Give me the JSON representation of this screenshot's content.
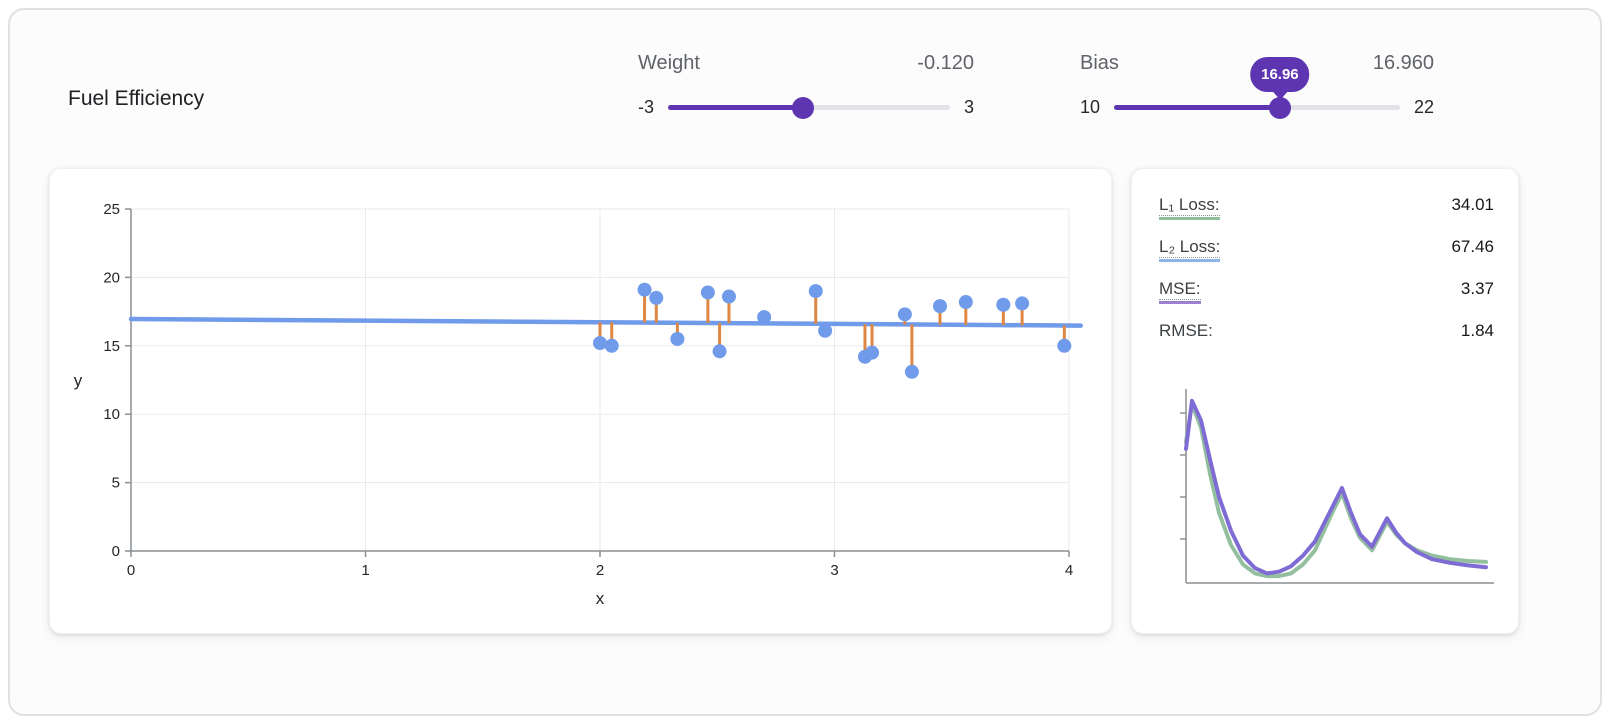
{
  "header": {
    "title": "Fuel Efficiency",
    "weight": {
      "label": "Weight",
      "value": -0.12,
      "value_display": "-0.120",
      "min": -3,
      "max": 3,
      "min_label": "-3",
      "max_label": "3"
    },
    "bias": {
      "label": "Bias",
      "value": 16.96,
      "value_display": "16.960",
      "min": 10,
      "max": 22,
      "min_label": "10",
      "max_label": "22",
      "tooltip": "16.96"
    }
  },
  "loss_panel": {
    "rows": [
      {
        "label": "L₁ Loss:",
        "value": "34.01",
        "color": "#8ebe9a"
      },
      {
        "label": "L₂ Loss:",
        "value": "67.46",
        "color": "#8fb4e8"
      },
      {
        "label": "MSE:",
        "value": "3.37",
        "color": "#9b7fd4"
      },
      {
        "label": "RMSE:",
        "value": "1.84",
        "color": "none"
      }
    ]
  },
  "colors": {
    "accent": "#5e35b1",
    "point_blue": "#6f9bea",
    "line_blue": "#6f9bea",
    "residual_orange": "#de8743",
    "curve_green": "#94bf9e",
    "curve_purple": "#7e6bd3",
    "axis_gray": "#8a8f94",
    "grid_gray": "#e9eaec"
  },
  "chart_data": [
    {
      "type": "scatter",
      "title": "",
      "xlabel": "x",
      "ylabel": "y",
      "xlim": [
        0,
        4
      ],
      "ylim": [
        0,
        25
      ],
      "xticks": [
        0,
        1,
        2,
        3,
        4
      ],
      "yticks": [
        0,
        5,
        10,
        15,
        20,
        25
      ],
      "grid": true,
      "points": [
        [
          2.0,
          15.2
        ],
        [
          2.05,
          15.0
        ],
        [
          2.19,
          19.1
        ],
        [
          2.24,
          18.5
        ],
        [
          2.33,
          15.5
        ],
        [
          2.46,
          18.9
        ],
        [
          2.51,
          14.6
        ],
        [
          2.55,
          18.6
        ],
        [
          2.7,
          17.1
        ],
        [
          2.92,
          19.0
        ],
        [
          2.96,
          16.1
        ],
        [
          3.13,
          14.2
        ],
        [
          3.16,
          14.5
        ],
        [
          3.3,
          17.3
        ],
        [
          3.33,
          13.1
        ],
        [
          3.45,
          17.9
        ],
        [
          3.56,
          18.2
        ],
        [
          3.72,
          18.0
        ],
        [
          3.8,
          18.1
        ],
        [
          3.98,
          15.0
        ]
      ],
      "model_line": {
        "weight": -0.12,
        "bias": 16.96
      },
      "residuals": true
    },
    {
      "type": "line",
      "title": "loss-curve",
      "xlim": [
        0,
        1
      ],
      "ylim": [
        0,
        1
      ],
      "grid": false,
      "legend": "none",
      "series": [
        {
          "name": "l1-loss-curve",
          "color": "#94bf9e",
          "points": [
            [
              0,
              0.76
            ],
            [
              0.02,
              0.97
            ],
            [
              0.05,
              0.84
            ],
            [
              0.08,
              0.58
            ],
            [
              0.11,
              0.36
            ],
            [
              0.15,
              0.18
            ],
            [
              0.19,
              0.07
            ],
            [
              0.23,
              0.02
            ],
            [
              0.27,
              0.005
            ],
            [
              0.31,
              0.005
            ],
            [
              0.35,
              0.02
            ],
            [
              0.39,
              0.07
            ],
            [
              0.43,
              0.15
            ],
            [
              0.46,
              0.26
            ],
            [
              0.49,
              0.37
            ],
            [
              0.52,
              0.47
            ],
            [
              0.55,
              0.33
            ],
            [
              0.58,
              0.22
            ],
            [
              0.62,
              0.15
            ],
            [
              0.645,
              0.23
            ],
            [
              0.67,
              0.31
            ],
            [
              0.7,
              0.24
            ],
            [
              0.73,
              0.19
            ],
            [
              0.77,
              0.15
            ],
            [
              0.82,
              0.12
            ],
            [
              0.88,
              0.1
            ],
            [
              0.94,
              0.09
            ],
            [
              1.0,
              0.085
            ]
          ]
        },
        {
          "name": "mse-loss-curve",
          "color": "#7e6bd3",
          "points": [
            [
              0,
              0.72
            ],
            [
              0.02,
              0.99
            ],
            [
              0.05,
              0.88
            ],
            [
              0.08,
              0.66
            ],
            [
              0.11,
              0.45
            ],
            [
              0.15,
              0.26
            ],
            [
              0.19,
              0.12
            ],
            [
              0.23,
              0.05
            ],
            [
              0.27,
              0.02
            ],
            [
              0.31,
              0.03
            ],
            [
              0.35,
              0.06
            ],
            [
              0.39,
              0.12
            ],
            [
              0.43,
              0.2
            ],
            [
              0.46,
              0.3
            ],
            [
              0.49,
              0.4
            ],
            [
              0.52,
              0.5
            ],
            [
              0.55,
              0.36
            ],
            [
              0.58,
              0.24
            ],
            [
              0.62,
              0.17
            ],
            [
              0.645,
              0.25
            ],
            [
              0.67,
              0.33
            ],
            [
              0.7,
              0.25
            ],
            [
              0.73,
              0.19
            ],
            [
              0.77,
              0.14
            ],
            [
              0.82,
              0.1
            ],
            [
              0.88,
              0.08
            ],
            [
              0.94,
              0.065
            ],
            [
              1.0,
              0.055
            ]
          ]
        }
      ]
    }
  ]
}
